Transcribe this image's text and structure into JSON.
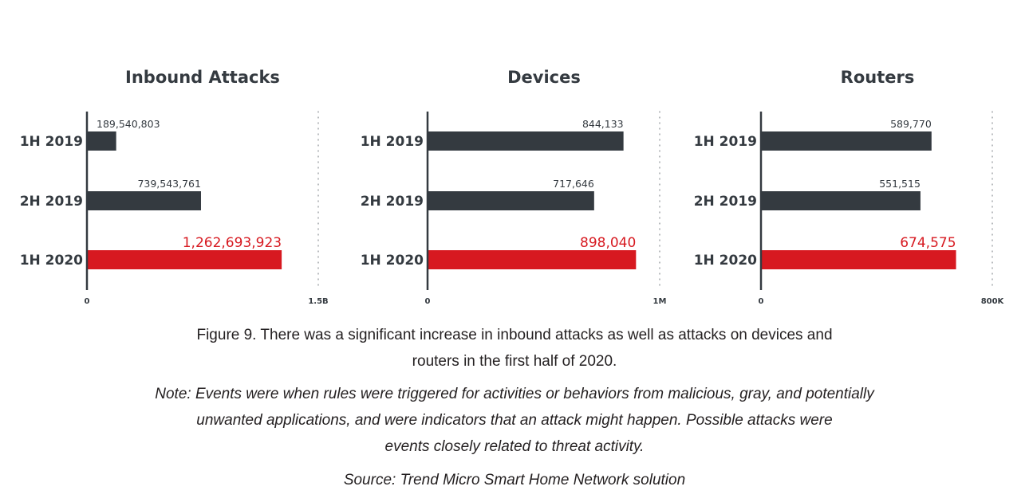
{
  "chart_data": [
    {
      "type": "bar",
      "orientation": "horizontal",
      "title": "Inbound Attacks",
      "categories": [
        "1H 2019",
        "2H 2019",
        "1H 2020"
      ],
      "values": [
        189540803,
        739543761,
        1262693923
      ],
      "value_labels": [
        "189,540,803",
        "739,543,761",
        "1,262,693,923"
      ],
      "highlight_index": 2,
      "xlim": [
        0,
        1500000000
      ],
      "x_ticks": [
        {
          "value": 0,
          "label": "0"
        },
        {
          "value": 1500000000,
          "label": "1.5B"
        }
      ],
      "xlabel": "",
      "ylabel": "",
      "grid": false,
      "legend": "none"
    },
    {
      "type": "bar",
      "orientation": "horizontal",
      "title": "Devices",
      "categories": [
        "1H 2019",
        "2H 2019",
        "1H 2020"
      ],
      "values": [
        844133,
        717646,
        898040
      ],
      "value_labels": [
        "844,133",
        "717,646",
        "898,040"
      ],
      "highlight_index": 2,
      "xlim": [
        0,
        1000000
      ],
      "x_ticks": [
        {
          "value": 0,
          "label": "0"
        },
        {
          "value": 1000000,
          "label": "1M"
        }
      ],
      "xlabel": "",
      "ylabel": "",
      "grid": false,
      "legend": "none"
    },
    {
      "type": "bar",
      "orientation": "horizontal",
      "title": "Routers",
      "categories": [
        "1H 2019",
        "2H 2019",
        "1H 2020"
      ],
      "values": [
        589770,
        551515,
        674575
      ],
      "value_labels": [
        "589,770",
        "551,515",
        "674,575"
      ],
      "highlight_index": 2,
      "xlim": [
        0,
        800000
      ],
      "x_ticks": [
        {
          "value": 0,
          "label": "0"
        },
        {
          "value": 800000,
          "label": "800K"
        }
      ],
      "xlabel": "",
      "ylabel": "",
      "grid": false,
      "legend": "none"
    }
  ],
  "colors": {
    "bar": "#343a40",
    "highlight": "#d71920",
    "text": "#343a40",
    "axis": "#343a40"
  },
  "caption": {
    "line1": "Figure 9. There was a significant increase in inbound attacks as well as attacks on devices and",
    "line2": "routers in the first half of 2020."
  },
  "note": {
    "line1": "Note: Events were when rules were triggered for activities or behaviors from malicious, gray, and potentially",
    "line2": "unwanted applications, and were indicators that an attack might happen. Possible attacks were",
    "line3": "events closely related to threat activity."
  },
  "source": "Source: Trend Micro Smart Home Network solution"
}
